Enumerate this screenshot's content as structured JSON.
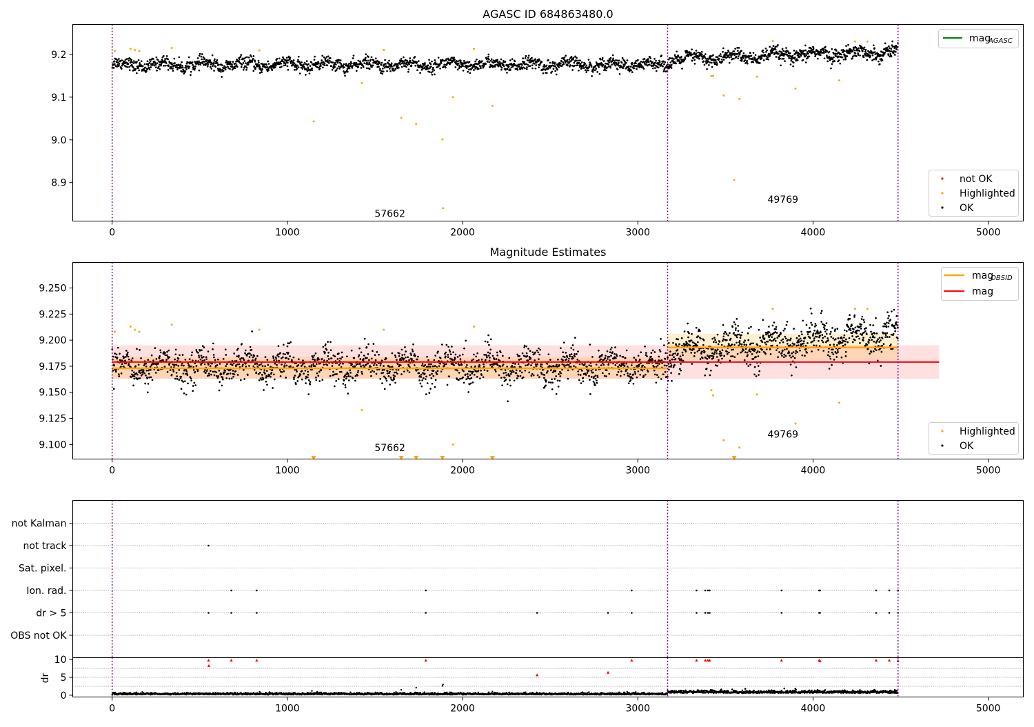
{
  "chart_data": [
    {
      "type": "scatter",
      "title": "AGASC ID 684863480.0",
      "xlabel": "",
      "ylabel": "",
      "xlim": [
        -225,
        5200
      ],
      "ylim": [
        8.81,
        9.27
      ],
      "xticks": [
        0,
        1000,
        2000,
        3000,
        4000,
        5000
      ],
      "yticks": [
        8.9,
        9.0,
        9.1,
        9.2
      ],
      "ytick_labels": [
        "8.9",
        "9.0",
        "9.1",
        "9.2"
      ],
      "grid": false,
      "vlines": [
        0,
        3170,
        4485
      ],
      "annotations": [
        {
          "text": "57662",
          "x": 1585,
          "y": 8.82
        },
        {
          "text": "49769",
          "x": 3828,
          "y": 8.853
        }
      ],
      "legend_top": {
        "placement": "top-right",
        "entries": [
          {
            "label": "mag",
            "sub": "AGASC",
            "color": "#008000",
            "kind": "line"
          }
        ]
      },
      "legend_bottom": {
        "placement": "bottom-right",
        "entries": [
          {
            "label": "not OK",
            "color": "#ff0000",
            "kind": "dot"
          },
          {
            "label": "Highlighted",
            "color": "#ffa500",
            "kind": "dot"
          },
          {
            "label": "OK",
            "color": "#000000",
            "kind": "dot"
          }
        ]
      },
      "series": [
        {
          "name": "OK",
          "color": "#000000",
          "segments": [
            {
              "x0": 0,
              "x1": 3170,
              "n": 1650,
              "base": 9.176,
              "noise": 0.01
            },
            {
              "x0": 3170,
              "x1": 4485,
              "n": 750,
              "base_start": 9.188,
              "base_end": 9.207,
              "noise": 0.011
            }
          ]
        },
        {
          "name": "Highlighted",
          "color": "#ffa500",
          "x": [
            15,
            105,
            130,
            155,
            340,
            840,
            1150,
            1425,
            1550,
            1650,
            1735,
            1885,
            1888,
            1945,
            2065,
            2170,
            3420,
            3430,
            3490,
            3550,
            3580,
            3680,
            3770,
            3900,
            4150,
            4240,
            4310
          ],
          "y": [
            9.208,
            9.213,
            9.21,
            9.208,
            9.215,
            9.209,
            9.043,
            9.133,
            9.21,
            9.052,
            9.037,
            9.001,
            8.84,
            9.1,
            9.213,
            9.08,
            9.149,
            9.15,
            9.104,
            8.906,
            9.096,
            9.148,
            9.231,
            9.12,
            9.139,
            9.23,
            9.23
          ]
        }
      ]
    },
    {
      "type": "scatter",
      "title": "Magnitude Estimates",
      "xlabel": "",
      "ylabel": "",
      "xlim": [
        -225,
        5200
      ],
      "ylim": [
        9.086,
        9.2745
      ],
      "xticks": [
        0,
        1000,
        2000,
        3000,
        4000,
        5000
      ],
      "yticks": [
        9.1,
        9.125,
        9.15,
        9.175,
        9.2,
        9.225,
        9.25
      ],
      "ytick_labels": [
        "9.100",
        "9.125",
        "9.150",
        "9.175",
        "9.200",
        "9.225",
        "9.250"
      ],
      "grid": false,
      "vlines": [
        0,
        3170,
        4485
      ],
      "bands": [
        {
          "x0": 0,
          "x1": 4720,
          "y0": 9.163,
          "y1": 9.195,
          "color": "#ff0000",
          "opacity": 0.12
        },
        {
          "x0": 0,
          "x1": 3170,
          "y0": 9.163,
          "y1": 9.184,
          "color": "#ffa500",
          "opacity": 0.18
        },
        {
          "x0": 3170,
          "x1": 4485,
          "y0": 9.181,
          "y1": 9.206,
          "color": "#ffa500",
          "opacity": 0.18
        }
      ],
      "lines": [
        {
          "name": "mag",
          "color": "#ff0000",
          "x": [
            0,
            4720
          ],
          "y": [
            9.179,
            9.179
          ]
        },
        {
          "name": "mag OBSID",
          "color": "#ffa500",
          "x": [
            0,
            3170
          ],
          "y": [
            9.173,
            9.173
          ]
        },
        {
          "name": "mag OBSID",
          "color": "#ffa500",
          "x": [
            3170,
            4485
          ],
          "y": [
            9.193,
            9.193
          ]
        }
      ],
      "annotations": [
        {
          "text": "57662",
          "x": 1585,
          "y": 9.0935
        },
        {
          "text": "49769",
          "x": 3828,
          "y": 9.1065
        }
      ],
      "legend_top": {
        "placement": "top-right",
        "entries": [
          {
            "label": "mag",
            "sub": "OBSID",
            "color": "#ffa500",
            "kind": "line"
          },
          {
            "label": "mag",
            "sub": "",
            "color": "#ff0000",
            "kind": "line"
          }
        ]
      },
      "legend_bottom": {
        "placement": "bottom-right",
        "entries": [
          {
            "label": "Highlighted",
            "color": "#ffa500",
            "kind": "dot"
          },
          {
            "label": "OK",
            "color": "#000000",
            "kind": "dot"
          }
        ]
      },
      "series": [
        {
          "name": "OK",
          "color": "#000000",
          "segments": [
            {
              "x0": 0,
              "x1": 3170,
              "n": 1650,
              "base": 9.175,
              "noise": 0.011
            },
            {
              "x0": 3170,
              "x1": 4485,
              "n": 750,
              "base_start": 9.188,
              "base_end": 9.207,
              "noise": 0.012
            }
          ]
        },
        {
          "name": "Highlighted",
          "color": "#ffa500",
          "x": [
            15,
            105,
            130,
            155,
            340,
            840,
            1425,
            1550,
            1945,
            2065,
            3420,
            3430,
            3490,
            3580,
            3680,
            3770,
            3900,
            4150,
            4240,
            4310
          ],
          "y": [
            9.208,
            9.213,
            9.21,
            9.208,
            9.215,
            9.21,
            9.133,
            9.21,
            9.1,
            9.213,
            9.152,
            9.147,
            9.104,
            9.097,
            9.148,
            9.23,
            9.12,
            9.14,
            9.23,
            9.23
          ]
        },
        {
          "name": "Highlighted (off-scale)",
          "color": "#ffa500",
          "marker": "triangle-down",
          "x": [
            1150,
            1650,
            1735,
            1885,
            2170,
            3550
          ],
          "y": [
            9.087,
            9.087,
            9.087,
            9.087,
            9.087,
            9.087
          ]
        }
      ]
    },
    {
      "type": "scatter",
      "title": "",
      "xlabel": "",
      "ylabel": "",
      "xlim": [
        -225,
        5200
      ],
      "categories": [
        "not Kalman",
        "not track",
        "Sat. pixel.",
        "Ion. rad.",
        "dr > 5",
        "OBS not OK"
      ],
      "grid": true,
      "vlines": [
        0,
        3170,
        4485
      ],
      "flags": {
        "not track": [
          550
        ],
        "Ion. rad.": [
          680,
          825,
          1790,
          2965,
          3335,
          3385,
          3400,
          3410,
          3820,
          4035,
          4040,
          4360,
          4435,
          4485
        ],
        "dr > 5": [
          550,
          680,
          825,
          1790,
          2425,
          2830,
          2965,
          3335,
          3385,
          3400,
          3410,
          3820,
          4035,
          4040,
          4360,
          4435,
          4485
        ]
      },
      "flag_color": "#000000"
    },
    {
      "type": "scatter",
      "title": "",
      "xlabel": "",
      "ylabel": "dr",
      "xlim": [
        -225,
        5200
      ],
      "ylim": [
        -0.5,
        10.5
      ],
      "yticks": [
        0,
        5,
        10
      ],
      "grid": true,
      "vlines": [
        0,
        3170,
        4485
      ],
      "series": [
        {
          "name": "OK",
          "color": "#000000",
          "segments": [
            {
              "x0": 0,
              "x1": 3170,
              "n": 1400,
              "base": 0.3,
              "noise": 0.25
            },
            {
              "x0": 3170,
              "x1": 4485,
              "n": 650,
              "base": 0.8,
              "noise": 0.35
            }
          ],
          "extra_x": [
            1140,
            1650,
            1735,
            1885,
            1888,
            2170
          ],
          "extra_y": [
            1.2,
            1.5,
            2.1,
            2.6,
            3.0,
            1.0
          ]
        },
        {
          "name": "not OK",
          "color": "#ff0000",
          "x": [
            550,
            552,
            680,
            825,
            1790,
            2425,
            2830,
            2965,
            3335,
            3385,
            3400,
            3410,
            3820,
            4035,
            4040,
            4360,
            4435,
            4485
          ],
          "y": [
            9.8,
            8.3,
            9.8,
            9.8,
            9.8,
            5.7,
            6.4,
            9.8,
            9.8,
            9.8,
            9.8,
            9.8,
            9.8,
            9.8,
            9.6,
            9.8,
            9.8,
            9.7
          ],
          "marker": "triangle-up"
        }
      ]
    }
  ]
}
